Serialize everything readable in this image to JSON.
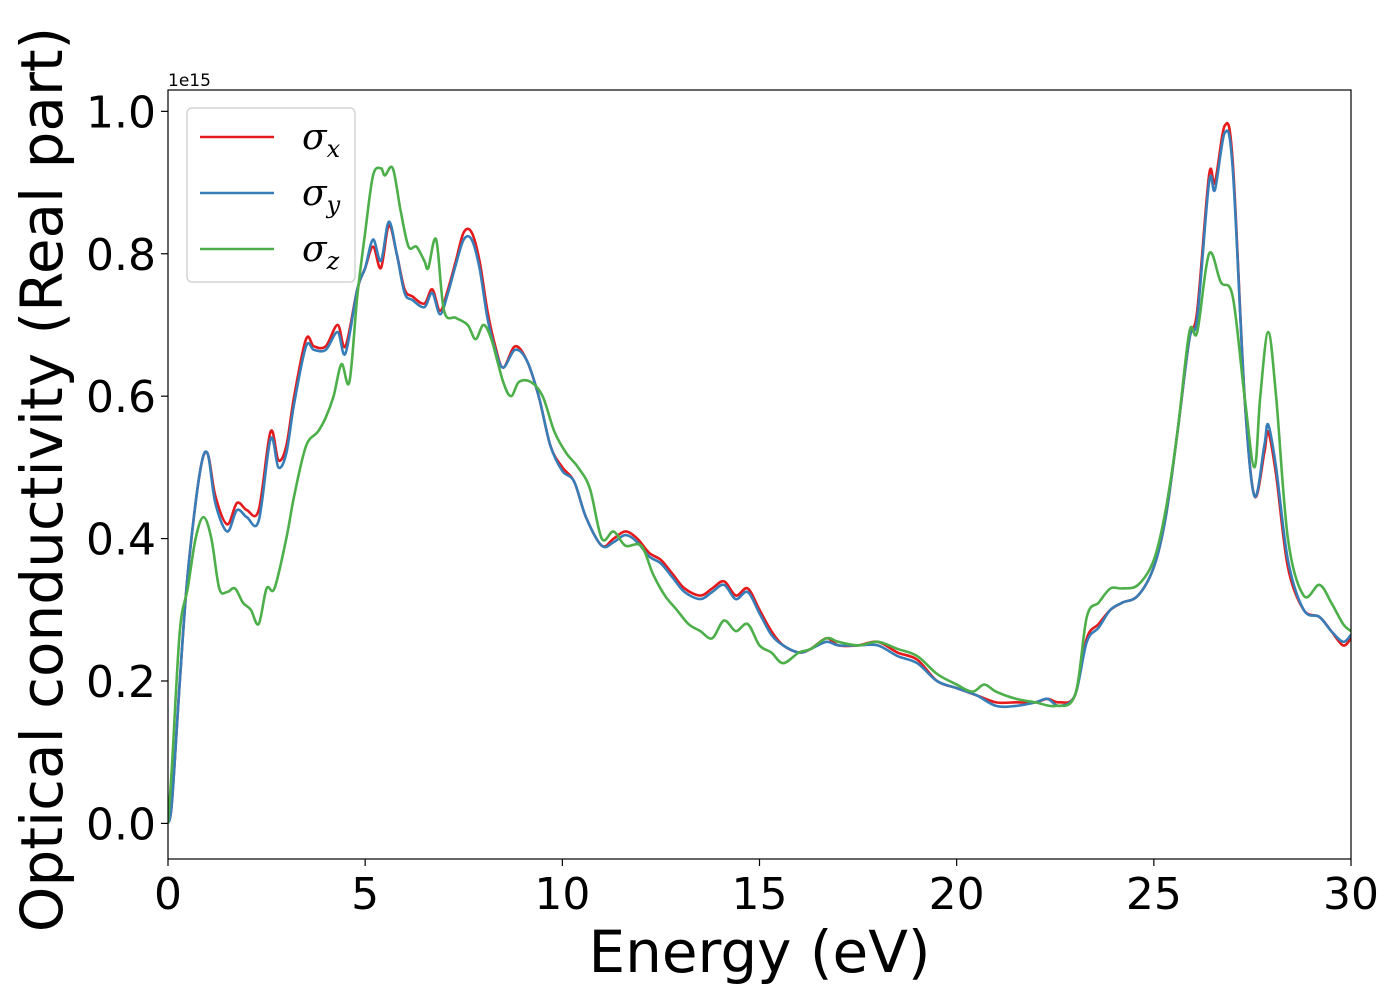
{
  "chart_data": {
    "type": "line",
    "xlabel": "Energy (eV)",
    "ylabel": "Optical conductivity (Real part)",
    "y_multiplier": "1e15",
    "xlim": [
      0,
      30
    ],
    "ylim": [
      -0.05,
      1.03
    ],
    "x_ticks": [
      "0",
      "5",
      "10",
      "15",
      "20",
      "25",
      "30"
    ],
    "y_ticks": [
      "0.0",
      "0.2",
      "0.4",
      "0.6",
      "0.8",
      "1.0"
    ],
    "grid": false,
    "legend_position": "upper-left",
    "series": [
      {
        "name": "σx",
        "label_main": "σ",
        "label_sub": "x",
        "color": "#e41a1c",
        "points": [
          [
            0,
            0
          ],
          [
            0.1,
            0.03
          ],
          [
            0.3,
            0.2
          ],
          [
            0.5,
            0.35
          ],
          [
            0.8,
            0.49
          ],
          [
            1.0,
            0.52
          ],
          [
            1.2,
            0.46
          ],
          [
            1.5,
            0.42
          ],
          [
            1.75,
            0.45
          ],
          [
            2.0,
            0.44
          ],
          [
            2.3,
            0.44
          ],
          [
            2.6,
            0.55
          ],
          [
            2.8,
            0.51
          ],
          [
            3.0,
            0.53
          ],
          [
            3.2,
            0.6
          ],
          [
            3.5,
            0.68
          ],
          [
            3.7,
            0.67
          ],
          [
            4.0,
            0.67
          ],
          [
            4.3,
            0.7
          ],
          [
            4.5,
            0.67
          ],
          [
            4.8,
            0.75
          ],
          [
            5.0,
            0.78
          ],
          [
            5.2,
            0.81
          ],
          [
            5.4,
            0.78
          ],
          [
            5.6,
            0.84
          ],
          [
            5.8,
            0.8
          ],
          [
            6.0,
            0.75
          ],
          [
            6.2,
            0.74
          ],
          [
            6.5,
            0.73
          ],
          [
            6.7,
            0.75
          ],
          [
            6.9,
            0.72
          ],
          [
            7.1,
            0.75
          ],
          [
            7.3,
            0.79
          ],
          [
            7.5,
            0.83
          ],
          [
            7.7,
            0.83
          ],
          [
            7.9,
            0.79
          ],
          [
            8.1,
            0.72
          ],
          [
            8.3,
            0.67
          ],
          [
            8.5,
            0.64
          ],
          [
            8.8,
            0.67
          ],
          [
            9.1,
            0.65
          ],
          [
            9.4,
            0.6
          ],
          [
            9.7,
            0.53
          ],
          [
            10.0,
            0.5
          ],
          [
            10.3,
            0.48
          ],
          [
            10.6,
            0.43
          ],
          [
            11.0,
            0.39
          ],
          [
            11.3,
            0.4
          ],
          [
            11.6,
            0.41
          ],
          [
            11.9,
            0.4
          ],
          [
            12.2,
            0.38
          ],
          [
            12.5,
            0.37
          ],
          [
            12.8,
            0.35
          ],
          [
            13.1,
            0.33
          ],
          [
            13.5,
            0.32
          ],
          [
            13.8,
            0.33
          ],
          [
            14.1,
            0.34
          ],
          [
            14.4,
            0.32
          ],
          [
            14.7,
            0.33
          ],
          [
            15.0,
            0.3
          ],
          [
            15.3,
            0.27
          ],
          [
            15.6,
            0.25
          ],
          [
            16.0,
            0.24
          ],
          [
            16.3,
            0.245
          ],
          [
            16.7,
            0.26
          ],
          [
            17.0,
            0.25
          ],
          [
            17.5,
            0.25
          ],
          [
            18.0,
            0.255
          ],
          [
            18.5,
            0.24
          ],
          [
            19.0,
            0.23
          ],
          [
            19.5,
            0.2
          ],
          [
            20.0,
            0.19
          ],
          [
            20.5,
            0.18
          ],
          [
            21.0,
            0.17
          ],
          [
            21.5,
            0.17
          ],
          [
            22.0,
            0.17
          ],
          [
            22.3,
            0.175
          ],
          [
            22.6,
            0.17
          ],
          [
            23.0,
            0.18
          ],
          [
            23.3,
            0.26
          ],
          [
            23.6,
            0.28
          ],
          [
            23.9,
            0.3
          ],
          [
            24.2,
            0.31
          ],
          [
            24.6,
            0.32
          ],
          [
            25.0,
            0.36
          ],
          [
            25.3,
            0.43
          ],
          [
            25.6,
            0.55
          ],
          [
            25.9,
            0.68
          ],
          [
            26.1,
            0.72
          ],
          [
            26.4,
            0.91
          ],
          [
            26.55,
            0.9
          ],
          [
            26.8,
            0.98
          ],
          [
            27.0,
            0.93
          ],
          [
            27.3,
            0.6
          ],
          [
            27.55,
            0.46
          ],
          [
            27.8,
            0.52
          ],
          [
            27.9,
            0.55
          ],
          [
            28.1,
            0.49
          ],
          [
            28.4,
            0.36
          ],
          [
            28.8,
            0.3
          ],
          [
            29.2,
            0.29
          ],
          [
            29.5,
            0.27
          ],
          [
            29.8,
            0.25
          ],
          [
            30.0,
            0.26
          ]
        ]
      },
      {
        "name": "σy",
        "label_main": "σ",
        "label_sub": "y",
        "color": "#377eb8",
        "points": [
          [
            0,
            0
          ],
          [
            0.1,
            0.03
          ],
          [
            0.3,
            0.2
          ],
          [
            0.5,
            0.35
          ],
          [
            0.8,
            0.49
          ],
          [
            1.0,
            0.52
          ],
          [
            1.2,
            0.45
          ],
          [
            1.5,
            0.41
          ],
          [
            1.75,
            0.44
          ],
          [
            2.0,
            0.43
          ],
          [
            2.3,
            0.425
          ],
          [
            2.6,
            0.54
          ],
          [
            2.8,
            0.5
          ],
          [
            3.0,
            0.52
          ],
          [
            3.2,
            0.59
          ],
          [
            3.5,
            0.67
          ],
          [
            3.7,
            0.665
          ],
          [
            4.0,
            0.665
          ],
          [
            4.3,
            0.69
          ],
          [
            4.5,
            0.66
          ],
          [
            4.8,
            0.75
          ],
          [
            5.0,
            0.78
          ],
          [
            5.2,
            0.82
          ],
          [
            5.4,
            0.79
          ],
          [
            5.6,
            0.845
          ],
          [
            5.8,
            0.8
          ],
          [
            6.0,
            0.745
          ],
          [
            6.2,
            0.735
          ],
          [
            6.5,
            0.725
          ],
          [
            6.7,
            0.745
          ],
          [
            6.9,
            0.715
          ],
          [
            7.1,
            0.745
          ],
          [
            7.3,
            0.785
          ],
          [
            7.5,
            0.82
          ],
          [
            7.7,
            0.82
          ],
          [
            7.9,
            0.78
          ],
          [
            8.1,
            0.71
          ],
          [
            8.3,
            0.665
          ],
          [
            8.5,
            0.64
          ],
          [
            8.8,
            0.665
          ],
          [
            9.1,
            0.65
          ],
          [
            9.4,
            0.6
          ],
          [
            9.7,
            0.53
          ],
          [
            10.0,
            0.495
          ],
          [
            10.3,
            0.48
          ],
          [
            10.6,
            0.43
          ],
          [
            11.0,
            0.39
          ],
          [
            11.3,
            0.395
          ],
          [
            11.6,
            0.405
          ],
          [
            11.9,
            0.395
          ],
          [
            12.2,
            0.375
          ],
          [
            12.5,
            0.365
          ],
          [
            12.8,
            0.345
          ],
          [
            13.1,
            0.325
          ],
          [
            13.5,
            0.315
          ],
          [
            13.8,
            0.325
          ],
          [
            14.1,
            0.335
          ],
          [
            14.4,
            0.315
          ],
          [
            14.7,
            0.325
          ],
          [
            15.0,
            0.295
          ],
          [
            15.3,
            0.265
          ],
          [
            15.6,
            0.25
          ],
          [
            16.0,
            0.24
          ],
          [
            16.3,
            0.245
          ],
          [
            16.7,
            0.255
          ],
          [
            17.0,
            0.25
          ],
          [
            17.5,
            0.25
          ],
          [
            18.0,
            0.25
          ],
          [
            18.5,
            0.235
          ],
          [
            19.0,
            0.225
          ],
          [
            19.5,
            0.2
          ],
          [
            20.0,
            0.19
          ],
          [
            20.5,
            0.18
          ],
          [
            21.0,
            0.165
          ],
          [
            21.5,
            0.165
          ],
          [
            22.0,
            0.17
          ],
          [
            22.3,
            0.175
          ],
          [
            22.6,
            0.165
          ],
          [
            23.0,
            0.18
          ],
          [
            23.3,
            0.255
          ],
          [
            23.6,
            0.275
          ],
          [
            23.9,
            0.3
          ],
          [
            24.2,
            0.31
          ],
          [
            24.6,
            0.32
          ],
          [
            25.0,
            0.36
          ],
          [
            25.3,
            0.43
          ],
          [
            25.6,
            0.55
          ],
          [
            25.9,
            0.68
          ],
          [
            26.1,
            0.71
          ],
          [
            26.4,
            0.9
          ],
          [
            26.55,
            0.89
          ],
          [
            26.8,
            0.97
          ],
          [
            27.0,
            0.92
          ],
          [
            27.3,
            0.6
          ],
          [
            27.55,
            0.46
          ],
          [
            27.8,
            0.53
          ],
          [
            27.9,
            0.56
          ],
          [
            28.1,
            0.5
          ],
          [
            28.4,
            0.37
          ],
          [
            28.8,
            0.3
          ],
          [
            29.2,
            0.29
          ],
          [
            29.5,
            0.27
          ],
          [
            29.8,
            0.255
          ],
          [
            30.0,
            0.265
          ]
        ]
      },
      {
        "name": "σz",
        "label_main": "σ",
        "label_sub": "z",
        "color": "#4daf4a",
        "points": [
          [
            0,
            0
          ],
          [
            0.1,
            0.08
          ],
          [
            0.3,
            0.27
          ],
          [
            0.5,
            0.33
          ],
          [
            0.7,
            0.4
          ],
          [
            0.9,
            0.43
          ],
          [
            1.1,
            0.4
          ],
          [
            1.3,
            0.33
          ],
          [
            1.5,
            0.325
          ],
          [
            1.7,
            0.33
          ],
          [
            1.9,
            0.31
          ],
          [
            2.1,
            0.3
          ],
          [
            2.3,
            0.28
          ],
          [
            2.5,
            0.33
          ],
          [
            2.7,
            0.33
          ],
          [
            3.0,
            0.4
          ],
          [
            3.2,
            0.46
          ],
          [
            3.5,
            0.53
          ],
          [
            3.8,
            0.55
          ],
          [
            4.0,
            0.57
          ],
          [
            4.2,
            0.6
          ],
          [
            4.4,
            0.645
          ],
          [
            4.6,
            0.62
          ],
          [
            4.8,
            0.74
          ],
          [
            5.0,
            0.83
          ],
          [
            5.2,
            0.91
          ],
          [
            5.4,
            0.92
          ],
          [
            5.5,
            0.91
          ],
          [
            5.7,
            0.92
          ],
          [
            5.9,
            0.86
          ],
          [
            6.1,
            0.81
          ],
          [
            6.3,
            0.81
          ],
          [
            6.5,
            0.79
          ],
          [
            6.6,
            0.78
          ],
          [
            6.8,
            0.82
          ],
          [
            7.0,
            0.72
          ],
          [
            7.3,
            0.71
          ],
          [
            7.6,
            0.7
          ],
          [
            7.8,
            0.68
          ],
          [
            8.0,
            0.7
          ],
          [
            8.2,
            0.68
          ],
          [
            8.5,
            0.62
          ],
          [
            8.7,
            0.6
          ],
          [
            8.9,
            0.62
          ],
          [
            9.2,
            0.62
          ],
          [
            9.5,
            0.6
          ],
          [
            9.8,
            0.55
          ],
          [
            10.1,
            0.52
          ],
          [
            10.4,
            0.5
          ],
          [
            10.7,
            0.47
          ],
          [
            11.0,
            0.4
          ],
          [
            11.3,
            0.41
          ],
          [
            11.6,
            0.39
          ],
          [
            12.0,
            0.39
          ],
          [
            12.3,
            0.35
          ],
          [
            12.6,
            0.32
          ],
          [
            12.9,
            0.3
          ],
          [
            13.2,
            0.28
          ],
          [
            13.5,
            0.27
          ],
          [
            13.8,
            0.26
          ],
          [
            14.1,
            0.285
          ],
          [
            14.4,
            0.27
          ],
          [
            14.7,
            0.28
          ],
          [
            15.0,
            0.25
          ],
          [
            15.3,
            0.24
          ],
          [
            15.6,
            0.225
          ],
          [
            16.0,
            0.24
          ],
          [
            16.3,
            0.245
          ],
          [
            16.7,
            0.26
          ],
          [
            17.0,
            0.255
          ],
          [
            17.5,
            0.25
          ],
          [
            18.0,
            0.255
          ],
          [
            18.5,
            0.245
          ],
          [
            19.0,
            0.235
          ],
          [
            19.5,
            0.21
          ],
          [
            20.0,
            0.195
          ],
          [
            20.4,
            0.185
          ],
          [
            20.7,
            0.195
          ],
          [
            21.0,
            0.185
          ],
          [
            21.5,
            0.175
          ],
          [
            22.0,
            0.17
          ],
          [
            22.5,
            0.165
          ],
          [
            23.0,
            0.18
          ],
          [
            23.3,
            0.29
          ],
          [
            23.6,
            0.31
          ],
          [
            23.9,
            0.33
          ],
          [
            24.2,
            0.33
          ],
          [
            24.6,
            0.335
          ],
          [
            25.0,
            0.37
          ],
          [
            25.3,
            0.44
          ],
          [
            25.6,
            0.55
          ],
          [
            25.9,
            0.69
          ],
          [
            26.1,
            0.69
          ],
          [
            26.4,
            0.8
          ],
          [
            26.7,
            0.76
          ],
          [
            27.0,
            0.74
          ],
          [
            27.3,
            0.6
          ],
          [
            27.55,
            0.5
          ],
          [
            27.7,
            0.6
          ],
          [
            27.9,
            0.69
          ],
          [
            28.1,
            0.6
          ],
          [
            28.4,
            0.4
          ],
          [
            28.8,
            0.32
          ],
          [
            29.2,
            0.335
          ],
          [
            29.5,
            0.31
          ],
          [
            29.8,
            0.28
          ],
          [
            30.0,
            0.27
          ]
        ]
      }
    ]
  }
}
